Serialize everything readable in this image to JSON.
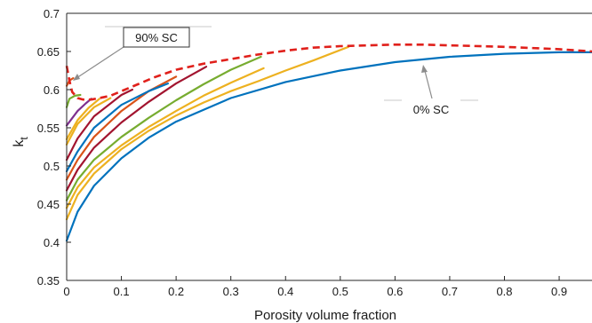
{
  "chart_data": {
    "type": "line",
    "xlabel": "Porosity volume fraction",
    "ylabel": "k",
    "ylabel_subscript": "t",
    "xlim": [
      0,
      0.96
    ],
    "ylim": [
      0.35,
      0.7
    ],
    "x_ticks": [
      0,
      0.1,
      0.2,
      0.3,
      0.4,
      0.5,
      0.6,
      0.7,
      0.8,
      0.9
    ],
    "x_tick_labels": [
      "0",
      "0.1",
      "0.2",
      "0.3",
      "0.4",
      "0.5",
      "0.6",
      "0.7",
      "0.8",
      "0.9"
    ],
    "y_ticks": [
      0.35,
      0.4,
      0.45,
      0.5,
      0.55,
      0.6,
      0.65,
      0.7
    ],
    "y_tick_labels": [
      "0.35",
      "0.4",
      "0.45",
      "0.5",
      "0.55",
      "0.6",
      "0.65",
      "0.7"
    ],
    "grid": false,
    "annotations": [
      {
        "text": "90% SC",
        "arrow_to": [
          0.005,
          0.606
        ]
      },
      {
        "text": "0% SC",
        "arrow_to": [
          0.66,
          0.643
        ]
      }
    ],
    "series": [
      {
        "color": "#0072BD",
        "x": [
          0,
          0.02,
          0.05,
          0.1,
          0.15,
          0.2,
          0.3,
          0.4,
          0.5,
          0.6,
          0.7,
          0.8,
          0.9,
          0.96
        ],
        "y": [
          0.402,
          0.44,
          0.474,
          0.51,
          0.537,
          0.558,
          0.589,
          0.61,
          0.625,
          0.636,
          0.643,
          0.647,
          0.649,
          0.649
        ]
      },
      {
        "color": "#EDB120",
        "x": [
          0,
          0.02,
          0.05,
          0.1,
          0.15,
          0.2,
          0.25,
          0.3,
          0.35,
          0.4,
          0.45,
          0.515
        ],
        "y": [
          0.43,
          0.462,
          0.49,
          0.522,
          0.546,
          0.566,
          0.583,
          0.598,
          0.611,
          0.625,
          0.638,
          0.656
        ]
      },
      {
        "color": "#EDB120",
        "x": [
          0,
          0.02,
          0.05,
          0.1,
          0.15,
          0.2,
          0.25,
          0.3,
          0.36
        ],
        "y": [
          0.445,
          0.472,
          0.498,
          0.527,
          0.551,
          0.572,
          0.592,
          0.609,
          0.628
        ]
      },
      {
        "color": "#77AC30",
        "x": [
          0,
          0.02,
          0.05,
          0.1,
          0.15,
          0.2,
          0.25,
          0.3,
          0.355
        ],
        "y": [
          0.455,
          0.482,
          0.508,
          0.538,
          0.563,
          0.586,
          0.607,
          0.626,
          0.643
        ]
      },
      {
        "color": "#A2142F",
        "x": [
          0,
          0.02,
          0.05,
          0.1,
          0.15,
          0.2,
          0.255
        ],
        "y": [
          0.468,
          0.495,
          0.524,
          0.557,
          0.584,
          0.608,
          0.63
        ]
      },
      {
        "color": "#D95319",
        "x": [
          0,
          0.02,
          0.05,
          0.1,
          0.15,
          0.2
        ],
        "y": [
          0.482,
          0.508,
          0.538,
          0.572,
          0.598,
          0.617
        ]
      },
      {
        "color": "#0072BD",
        "x": [
          0,
          0.02,
          0.05,
          0.1,
          0.15,
          0.185
        ],
        "y": [
          0.493,
          0.519,
          0.55,
          0.58,
          0.598,
          0.608
        ]
      },
      {
        "color": "#A2142F",
        "x": [
          0,
          0.02,
          0.05,
          0.1,
          0.12
        ],
        "y": [
          0.508,
          0.536,
          0.565,
          0.593,
          0.6
        ]
      },
      {
        "color": "#EDB120",
        "x": [
          0,
          0.02,
          0.05,
          0.08
        ],
        "y": [
          0.528,
          0.555,
          0.577,
          0.589
        ]
      },
      {
        "color": "#EDB120",
        "x": [
          0,
          0.02,
          0.04,
          0.06
        ],
        "y": [
          0.535,
          0.56,
          0.576,
          0.588
        ]
      },
      {
        "color": "#7E2F8E",
        "x": [
          0,
          0.02,
          0.035,
          0.045
        ],
        "y": [
          0.553,
          0.572,
          0.582,
          0.588
        ]
      },
      {
        "color": "#77AC30",
        "x": [
          0,
          0.005,
          0.015,
          0.025
        ],
        "y": [
          0.577,
          0.588,
          0.592,
          0.593
        ]
      },
      {
        "color": "#D95319",
        "x": [
          0,
          0.005,
          0.012
        ],
        "y": [
          0.605,
          0.612,
          0.615
        ]
      },
      {
        "color": "#E0201B",
        "dashed": true,
        "x": [
          0,
          0.005,
          0.01,
          0.02,
          0.03,
          0.045,
          0.06,
          0.08,
          0.1,
          0.13,
          0.16,
          0.2,
          0.25,
          0.3,
          0.35,
          0.4,
          0.45,
          0.5,
          0.55,
          0.6,
          0.65,
          0.7,
          0.8,
          0.9,
          0.96
        ],
        "y": [
          0.631,
          0.612,
          0.597,
          0.589,
          0.587,
          0.587,
          0.589,
          0.592,
          0.598,
          0.607,
          0.616,
          0.626,
          0.634,
          0.64,
          0.646,
          0.651,
          0.655,
          0.657,
          0.658,
          0.659,
          0.659,
          0.658,
          0.656,
          0.653,
          0.65
        ]
      }
    ]
  }
}
